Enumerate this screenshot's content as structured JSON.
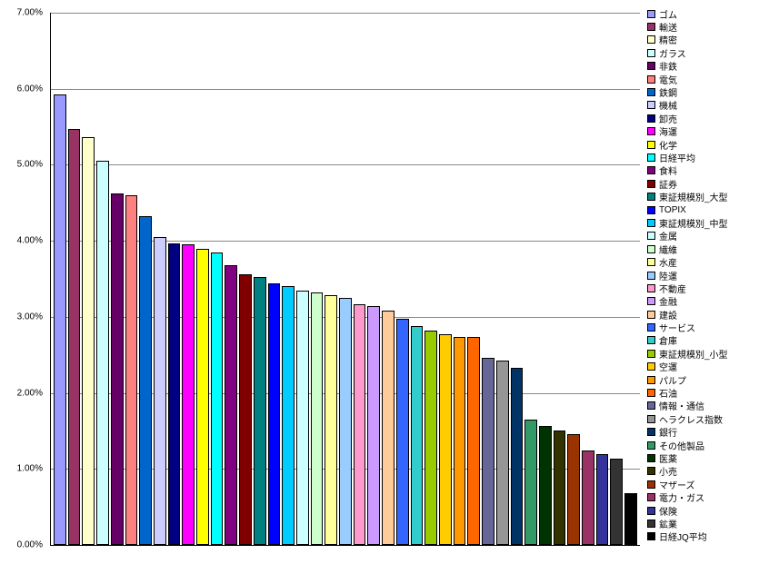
{
  "chart_data": {
    "type": "bar",
    "title": "",
    "xlabel": "",
    "ylabel": "",
    "ylim": [
      0,
      7
    ],
    "grid": true,
    "legend_position": "right",
    "yticks": [
      "7.00%",
      "6.00%",
      "5.00%",
      "4.00%",
      "3.00%",
      "2.00%",
      "1.00%",
      "0.00%"
    ],
    "series": [
      {
        "name": "ゴム",
        "value": 5.93,
        "color": "#9999FF"
      },
      {
        "name": "輸送",
        "value": 5.47,
        "color": "#993366"
      },
      {
        "name": "精密",
        "value": 5.36,
        "color": "#FFFFCC"
      },
      {
        "name": "ガラス",
        "value": 5.05,
        "color": "#CCFFFF"
      },
      {
        "name": "非鉄",
        "value": 4.62,
        "color": "#660066"
      },
      {
        "name": "電気",
        "value": 4.6,
        "color": "#FF8080"
      },
      {
        "name": "鉄鋼",
        "value": 4.33,
        "color": "#0066CC"
      },
      {
        "name": "機械",
        "value": 4.05,
        "color": "#CCCCFF"
      },
      {
        "name": "卸売",
        "value": 3.97,
        "color": "#000080"
      },
      {
        "name": "海運",
        "value": 3.95,
        "color": "#FF00FF"
      },
      {
        "name": "化学",
        "value": 3.9,
        "color": "#FFFF00"
      },
      {
        "name": "日経平均",
        "value": 3.85,
        "color": "#00FFFF"
      },
      {
        "name": "食料",
        "value": 3.68,
        "color": "#800080"
      },
      {
        "name": "証券",
        "value": 3.56,
        "color": "#800000"
      },
      {
        "name": "東証規模別_大型",
        "value": 3.53,
        "color": "#008080"
      },
      {
        "name": "TOPIX",
        "value": 3.44,
        "color": "#0000FF"
      },
      {
        "name": "東証規模別_中型",
        "value": 3.4,
        "color": "#00CCFF"
      },
      {
        "name": "金属",
        "value": 3.35,
        "color": "#CCFFFF"
      },
      {
        "name": "繊維",
        "value": 3.32,
        "color": "#CCFFCC"
      },
      {
        "name": "水産",
        "value": 3.28,
        "color": "#FFFF99"
      },
      {
        "name": "陸運",
        "value": 3.25,
        "color": "#99CCFF"
      },
      {
        "name": "不動産",
        "value": 3.17,
        "color": "#FF99CC"
      },
      {
        "name": "金融",
        "value": 3.14,
        "color": "#CC99FF"
      },
      {
        "name": "建設",
        "value": 3.08,
        "color": "#FFCC99"
      },
      {
        "name": "サービス",
        "value": 2.97,
        "color": "#3366FF"
      },
      {
        "name": "倉庫",
        "value": 2.88,
        "color": "#33CCCC"
      },
      {
        "name": "東証規模別_小型",
        "value": 2.82,
        "color": "#99CC00"
      },
      {
        "name": "空運",
        "value": 2.77,
        "color": "#FFCC00"
      },
      {
        "name": "パルプ",
        "value": 2.74,
        "color": "#FF9900"
      },
      {
        "name": "石油",
        "value": 2.73,
        "color": "#FF6600"
      },
      {
        "name": "情報・通信",
        "value": 2.46,
        "color": "#666699"
      },
      {
        "name": "ヘラクレス指数",
        "value": 2.42,
        "color": "#969696"
      },
      {
        "name": "銀行",
        "value": 2.33,
        "color": "#003366"
      },
      {
        "name": "その他製品",
        "value": 1.65,
        "color": "#339966"
      },
      {
        "name": "医薬",
        "value": 1.57,
        "color": "#003300"
      },
      {
        "name": "小売",
        "value": 1.5,
        "color": "#333300"
      },
      {
        "name": "マザーズ",
        "value": 1.46,
        "color": "#993300"
      },
      {
        "name": "電力・ガス",
        "value": 1.24,
        "color": "#993366"
      },
      {
        "name": "保険",
        "value": 1.2,
        "color": "#333399"
      },
      {
        "name": "鉱業",
        "value": 1.14,
        "color": "#333333"
      },
      {
        "name": "日経JQ平均",
        "value": 0.68,
        "color": "#000000"
      }
    ]
  }
}
